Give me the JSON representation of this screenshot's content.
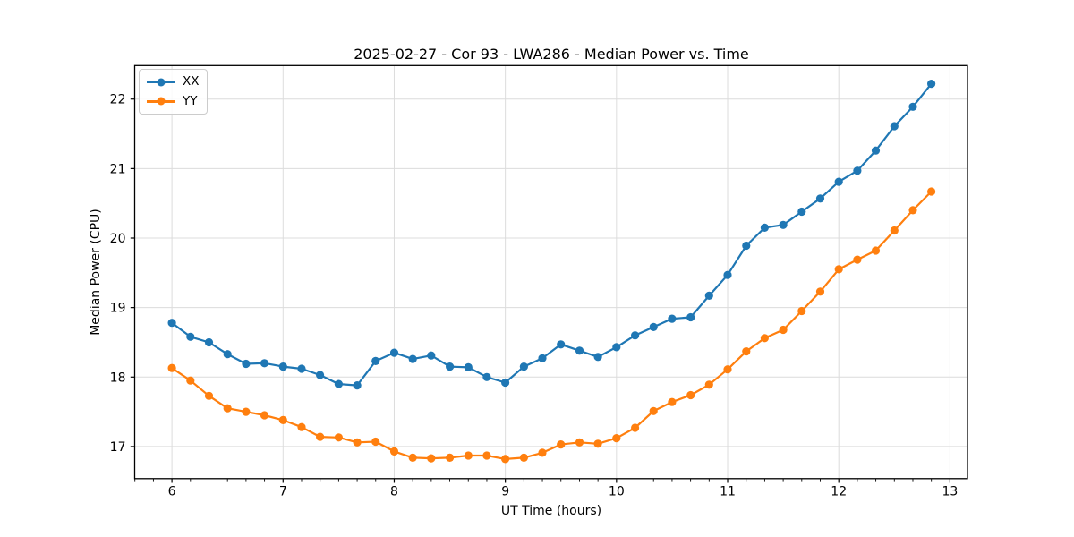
{
  "chart_data": {
    "type": "line",
    "title": "2025-02-27 - Cor 93 - LWA286 - Median Power vs. Time",
    "xlabel": "UT Time (hours)",
    "ylabel": "Median Power (CPU)",
    "xlim": [
      5.665,
      13.158
    ],
    "ylim": [
      16.538,
      22.482
    ],
    "xticks": [
      6,
      7,
      8,
      9,
      10,
      11,
      12,
      13
    ],
    "yticks": [
      17,
      18,
      19,
      20,
      21,
      22
    ],
    "x_minor_step": 0.166667,
    "grid": true,
    "grid_color": "#dcdcdc",
    "legend_position": "upper-left",
    "x": [
      6.0,
      6.167,
      6.333,
      6.5,
      6.667,
      6.833,
      7.0,
      7.167,
      7.333,
      7.5,
      7.667,
      7.833,
      8.0,
      8.167,
      8.333,
      8.5,
      8.667,
      8.833,
      9.0,
      9.167,
      9.333,
      9.5,
      9.667,
      9.833,
      10.0,
      10.167,
      10.333,
      10.5,
      10.667,
      10.833,
      11.0,
      11.167,
      11.333,
      11.5,
      11.667,
      11.833,
      12.0,
      12.167,
      12.333,
      12.5,
      12.667,
      12.833
    ],
    "series": [
      {
        "name": "XX",
        "color": "#1f77b4",
        "values": [
          18.78,
          18.58,
          18.5,
          18.33,
          18.19,
          18.2,
          18.15,
          18.12,
          18.03,
          17.9,
          17.88,
          18.23,
          18.35,
          18.26,
          18.31,
          18.15,
          18.14,
          18.0,
          17.92,
          18.15,
          18.27,
          18.47,
          18.38,
          18.29,
          18.43,
          18.6,
          18.72,
          18.84,
          18.86,
          19.17,
          19.47,
          19.89,
          20.15,
          20.19,
          20.38,
          20.57,
          20.81,
          20.97,
          21.26,
          21.61,
          21.89,
          22.22
        ]
      },
      {
        "name": "YY",
        "color": "#ff7f0e",
        "values": [
          18.13,
          17.95,
          17.73,
          17.55,
          17.5,
          17.45,
          17.38,
          17.28,
          17.14,
          17.13,
          17.06,
          17.07,
          16.93,
          16.84,
          16.83,
          16.84,
          16.87,
          16.87,
          16.82,
          16.84,
          16.91,
          17.03,
          17.06,
          17.04,
          17.12,
          17.27,
          17.51,
          17.64,
          17.74,
          17.89,
          18.11,
          18.37,
          18.56,
          18.68,
          18.95,
          19.23,
          19.55,
          19.69,
          19.82,
          20.11,
          20.4,
          20.67
        ]
      }
    ]
  }
}
